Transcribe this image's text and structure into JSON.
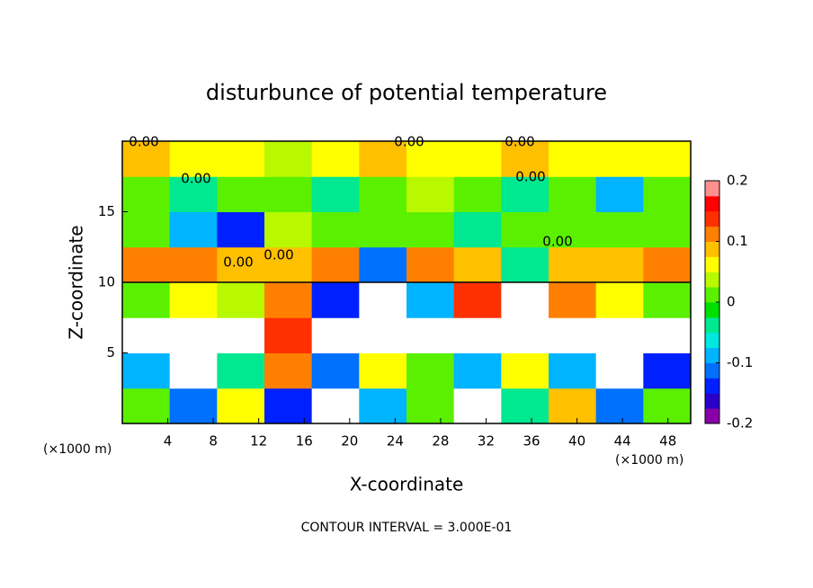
{
  "chart_data": {
    "type": "contour",
    "title": "disturbunce of potential temperature",
    "x_label": "X-coordinate",
    "y_label": "Z-coordinate",
    "x_unit_label": "(×1000 m)",
    "y_unit_label": "(×1000 m)",
    "annotation": "CONTOUR INTERVAL = 3.000E-01",
    "contour_labels": [
      "0.00",
      "0.00",
      "0.00",
      "0.00",
      "0.00",
      "0.00",
      "0.00",
      "0.00"
    ],
    "xlim": [
      0,
      50
    ],
    "ylim": [
      0,
      20
    ],
    "xticks": [
      4,
      8,
      12,
      16,
      20,
      24,
      28,
      32,
      36,
      40,
      44,
      48
    ],
    "yticks": [
      5,
      10,
      15
    ],
    "clim": [
      -0.2,
      0.2
    ],
    "cticks": [
      -0.2,
      -0.1,
      0,
      0.1,
      0.2
    ],
    "colors": [
      "#8a00a8",
      "#2a00c8",
      "#0020ff",
      "#0070ff",
      "#00b4ff",
      "#00e8e0",
      "#00e890",
      "#00e000",
      "#5af000",
      "#b8f800",
      "#ffff00",
      "#ffc000",
      "#ff8000",
      "#ff3000",
      "#ff0000",
      "#ff9090"
    ],
    "out_of_range_color": "#ffffff",
    "z": [
      [
        0,
        -0.12,
        0.05,
        -0.15,
        0.3,
        -0.1,
        0.02,
        0.3,
        -0.05,
        0.08,
        -0.12,
        0
      ],
      [
        -0.1,
        0.3,
        -0.05,
        0.1,
        -0.12,
        0.05,
        0.02,
        -0.08,
        0.06,
        -0.1,
        0.3,
        -0.15
      ],
      [
        0.3,
        -0.3,
        0.3,
        0.15,
        -0.3,
        0.3,
        -0.3,
        0.3,
        0.3,
        -0.3,
        0.3,
        0.3
      ],
      [
        0.02,
        0.05,
        0.03,
        0.12,
        -0.15,
        0.3,
        -0.1,
        0.15,
        -0.3,
        0.1,
        0.05,
        0
      ],
      [
        0.1,
        0.1,
        0.09,
        0.08,
        0.1,
        -0.12,
        0.1,
        0.08,
        -0.05,
        0.09,
        0.08,
        0.1
      ],
      [
        0,
        -0.1,
        -0.15,
        0.03,
        0.02,
        0.01,
        0.02,
        -0.05,
        0.01,
        0,
        0.02,
        0.01
      ],
      [
        0.02,
        -0.05,
        0,
        0.01,
        -0.03,
        0.02,
        0.03,
        0,
        -0.04,
        0.02,
        -0.08,
        0
      ],
      [
        0.08,
        0.05,
        0.07,
        0.04,
        0.06,
        0.09,
        0.05,
        0.06,
        0.08,
        0.05,
        0.07,
        0.06
      ]
    ]
  }
}
